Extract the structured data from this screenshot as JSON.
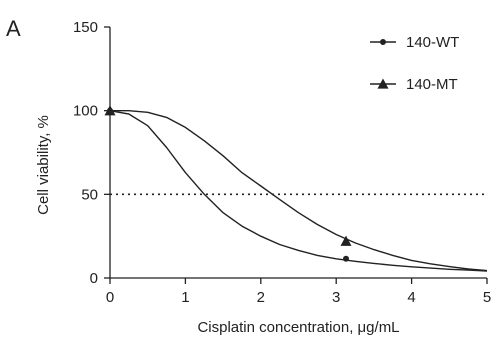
{
  "panel_label": "A",
  "chart_data": {
    "type": "line",
    "xlabel": "Cisplatin concentration, μg/mL",
    "ylabel": "Cell viability, %",
    "xlim": [
      0,
      5
    ],
    "ylim": [
      0,
      150
    ],
    "x_ticks": [
      "0",
      "1",
      "2",
      "3",
      "4",
      "5"
    ],
    "y_ticks": [
      "0",
      "50",
      "100",
      "150"
    ],
    "x_tick_values": [
      0,
      1,
      2,
      3,
      4,
      5
    ],
    "y_tick_values": [
      0,
      50,
      100,
      150
    ],
    "reference_line": {
      "y": 50,
      "style": "dotted"
    },
    "legend_position": "top-right",
    "series": [
      {
        "name": "140-WT",
        "marker": "circle",
        "color": "#222222",
        "curve_x": [
          0,
          0.25,
          0.5,
          0.75,
          1,
          1.25,
          1.5,
          1.75,
          2,
          2.25,
          2.5,
          2.75,
          3,
          3.25,
          3.5,
          3.75,
          4,
          4.25,
          4.5,
          4.75,
          5
        ],
        "curve_y": [
          100,
          98,
          91,
          78,
          63,
          50,
          39,
          31,
          25,
          20,
          16.5,
          13.5,
          11.5,
          10,
          8.7,
          7.6,
          6.7,
          5.9,
          5.2,
          4.7,
          4.2
        ],
        "points": [
          [
            0,
            100
          ],
          [
            3.13,
            11.5
          ]
        ]
      },
      {
        "name": "140-MT",
        "marker": "triangle",
        "color": "#222222",
        "curve_x": [
          0,
          0.25,
          0.5,
          0.75,
          1,
          1.25,
          1.5,
          1.75,
          2,
          2.25,
          2.5,
          2.75,
          3,
          3.25,
          3.5,
          3.75,
          4,
          4.25,
          4.5,
          4.75,
          5
        ],
        "curve_y": [
          100,
          100,
          99,
          96,
          90,
          82,
          73,
          63,
          55,
          47,
          39,
          32,
          26,
          21,
          17,
          13.5,
          10.5,
          8.5,
          6.8,
          5.4,
          4.4
        ],
        "points": [
          [
            0,
            100
          ],
          [
            3.13,
            22
          ]
        ]
      }
    ]
  }
}
